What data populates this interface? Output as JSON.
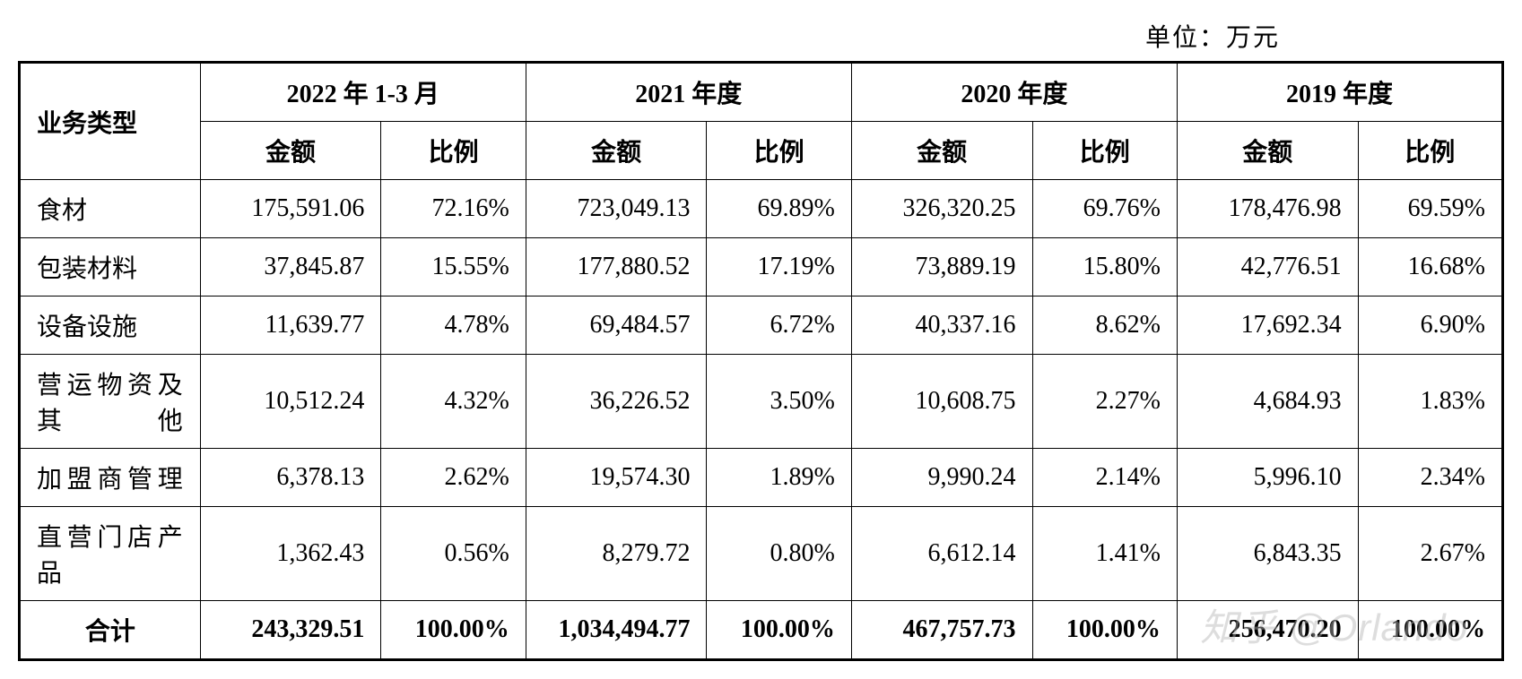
{
  "unit_label": "单位：万元",
  "table": {
    "header": {
      "row_header": "业务类型",
      "periods": [
        {
          "label": "2022 年 1-3 月",
          "sub": [
            "金额",
            "比例"
          ]
        },
        {
          "label": "2021 年度",
          "sub": [
            "金额",
            "比例"
          ]
        },
        {
          "label": "2020 年度",
          "sub": [
            "金额",
            "比例"
          ]
        },
        {
          "label": "2019 年度",
          "sub": [
            "金额",
            "比例"
          ]
        }
      ]
    },
    "rows": [
      {
        "label": "食材",
        "cells": [
          "175,591.06",
          "72.16%",
          "723,049.13",
          "69.89%",
          "326,320.25",
          "69.76%",
          "178,476.98",
          "69.59%"
        ]
      },
      {
        "label": "包装材料",
        "cells": [
          "37,845.87",
          "15.55%",
          "177,880.52",
          "17.19%",
          "73,889.19",
          "15.80%",
          "42,776.51",
          "16.68%"
        ]
      },
      {
        "label": "设备设施",
        "cells": [
          "11,639.77",
          "4.78%",
          "69,484.57",
          "6.72%",
          "40,337.16",
          "8.62%",
          "17,692.34",
          "6.90%"
        ]
      },
      {
        "label": "营运物资及其他",
        "cells": [
          "10,512.24",
          "4.32%",
          "36,226.52",
          "3.50%",
          "10,608.75",
          "2.27%",
          "4,684.93",
          "1.83%"
        ]
      },
      {
        "label": "加盟商管理",
        "cells": [
          "6,378.13",
          "2.62%",
          "19,574.30",
          "1.89%",
          "9,990.24",
          "2.14%",
          "5,996.10",
          "2.34%"
        ]
      },
      {
        "label": "直营门店产品",
        "cells": [
          "1,362.43",
          "0.56%",
          "8,279.72",
          "0.80%",
          "6,612.14",
          "1.41%",
          "6,843.35",
          "2.67%"
        ]
      }
    ],
    "total": {
      "label": "合计",
      "cells": [
        "243,329.51",
        "100.00%",
        "1,034,494.77",
        "100.00%",
        "467,757.73",
        "100.00%",
        "256,470.20",
        "100.00%"
      ]
    }
  },
  "watermark": "知乎 @Orlando",
  "styling": {
    "font_family": "SimSun",
    "font_size_body": 28,
    "font_size_watermark": 42,
    "border_outer_width": 3,
    "border_inner_width": 1,
    "border_color": "#000000",
    "background_color": "#ffffff",
    "text_color": "#000000",
    "watermark_color": "rgba(180,180,180,0.45)",
    "column_widths": {
      "label": 200,
      "amount": 200,
      "ratio": 160
    }
  }
}
